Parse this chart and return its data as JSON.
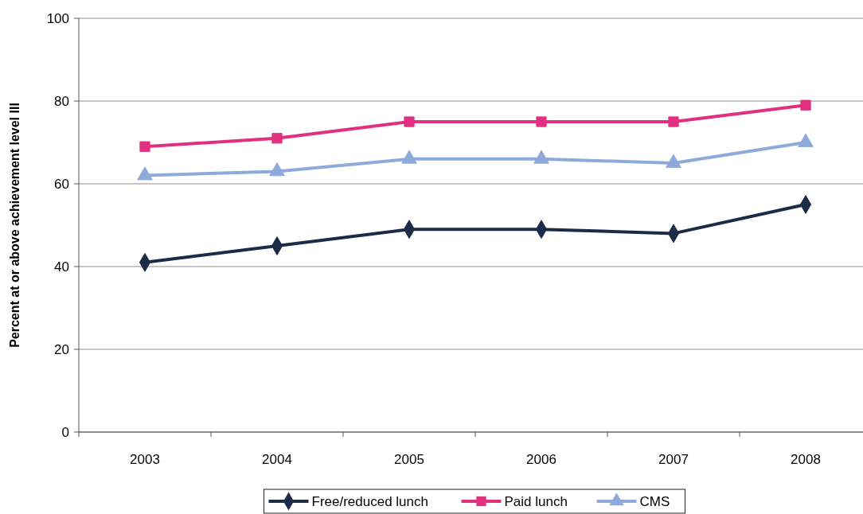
{
  "chart_data": {
    "type": "line",
    "ylabel": "Percent at or above achievement level III",
    "categories": [
      "2003",
      "2004",
      "2005",
      "2006",
      "2007",
      "2008"
    ],
    "series": [
      {
        "name": "Free/reduced lunch",
        "color": "#1c2c48",
        "marker": "diamond",
        "values": [
          41,
          45,
          49,
          49,
          48,
          55
        ]
      },
      {
        "name": "Paid lunch",
        "color": "#e0307f",
        "marker": "square",
        "values": [
          69,
          71,
          75,
          75,
          75,
          79
        ]
      },
      {
        "name": "CMS",
        "color": "#8eaadb",
        "marker": "triangle",
        "values": [
          62,
          63,
          66,
          66,
          65,
          70
        ]
      }
    ],
    "ylim": [
      0,
      100
    ],
    "yticks": [
      0,
      20,
      40,
      60,
      80,
      100
    ],
    "grid": "y",
    "legend": "bottom",
    "line_style": "solid"
  }
}
